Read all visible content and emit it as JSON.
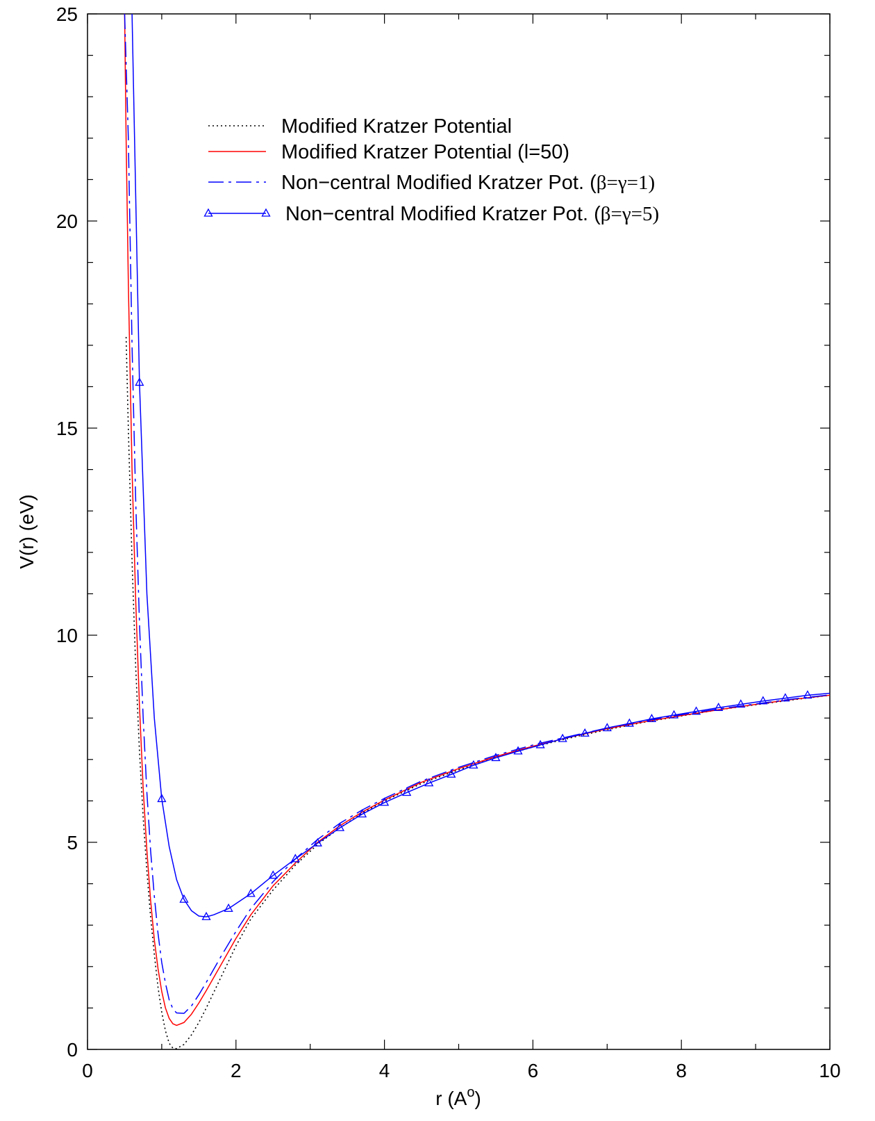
{
  "chart_data": {
    "type": "line",
    "xlabel": "r (A",
    "xlabel_superscript": "o",
    "xlabel_close": ")",
    "ylabel": "V(r) (eV)",
    "xlim": [
      0,
      10
    ],
    "ylim": [
      0,
      25
    ],
    "x_ticks": [
      0,
      2,
      4,
      6,
      8,
      10
    ],
    "y_ticks": [
      0,
      5,
      10,
      15,
      20,
      25
    ],
    "x_tick_labels": [
      "0",
      "2",
      "4",
      "6",
      "8",
      "10"
    ],
    "y_tick_labels": [
      "0",
      "5",
      "10",
      "15",
      "20",
      "25"
    ],
    "grid": false,
    "legend_position": "top-right",
    "series": [
      {
        "name": "Modified Kratzer Potential",
        "label_parts": [
          {
            "text": "Modified Kratzer Potential",
            "greek": false
          }
        ],
        "color": "#000000",
        "style": "dotted",
        "marker": "none",
        "points": [
          [
            0.52,
            17.2
          ],
          [
            0.55,
            15.0
          ],
          [
            0.6,
            11.8
          ],
          [
            0.65,
            9.2
          ],
          [
            0.7,
            7.2
          ],
          [
            0.75,
            5.6
          ],
          [
            0.8,
            4.3
          ],
          [
            0.85,
            3.2
          ],
          [
            0.9,
            2.3
          ],
          [
            0.95,
            1.5
          ],
          [
            1.0,
            0.9
          ],
          [
            1.05,
            0.45
          ],
          [
            1.1,
            0.15
          ],
          [
            1.15,
            0.03
          ],
          [
            1.2,
            0.02
          ],
          [
            1.3,
            0.12
          ],
          [
            1.4,
            0.35
          ],
          [
            1.5,
            0.65
          ],
          [
            1.6,
            1.0
          ],
          [
            1.8,
            1.75
          ],
          [
            2.0,
            2.5
          ],
          [
            2.2,
            3.15
          ],
          [
            2.5,
            3.85
          ],
          [
            2.8,
            4.45
          ],
          [
            3.1,
            4.95
          ],
          [
            3.4,
            5.35
          ],
          [
            3.7,
            5.7
          ],
          [
            4.0,
            6.0
          ],
          [
            4.5,
            6.42
          ],
          [
            5.0,
            6.75
          ],
          [
            5.5,
            7.05
          ],
          [
            6.0,
            7.3
          ],
          [
            6.5,
            7.52
          ],
          [
            7.0,
            7.72
          ],
          [
            7.5,
            7.9
          ],
          [
            8.0,
            8.05
          ],
          [
            8.5,
            8.2
          ],
          [
            9.0,
            8.32
          ],
          [
            9.5,
            8.44
          ],
          [
            10.0,
            8.55
          ]
        ]
      },
      {
        "name": "Modified Kratzer Potential (l=50)",
        "label_parts": [
          {
            "text": "Modified Kratzer Potential (l=50)",
            "greek": false
          }
        ],
        "color": "#ff0000",
        "style": "solid",
        "marker": "none",
        "points": [
          [
            0.5,
            25.0
          ],
          [
            0.52,
            22.0
          ],
          [
            0.55,
            18.5
          ],
          [
            0.6,
            14.0
          ],
          [
            0.65,
            10.8
          ],
          [
            0.7,
            8.3
          ],
          [
            0.75,
            6.3
          ],
          [
            0.8,
            4.8
          ],
          [
            0.85,
            3.6
          ],
          [
            0.9,
            2.65
          ],
          [
            0.95,
            1.95
          ],
          [
            1.0,
            1.4
          ],
          [
            1.05,
            1.0
          ],
          [
            1.1,
            0.75
          ],
          [
            1.15,
            0.62
          ],
          [
            1.2,
            0.58
          ],
          [
            1.3,
            0.65
          ],
          [
            1.4,
            0.85
          ],
          [
            1.5,
            1.12
          ],
          [
            1.6,
            1.42
          ],
          [
            1.8,
            2.05
          ],
          [
            2.0,
            2.68
          ],
          [
            2.2,
            3.25
          ],
          [
            2.5,
            3.95
          ],
          [
            2.8,
            4.5
          ],
          [
            3.1,
            5.0
          ],
          [
            3.4,
            5.4
          ],
          [
            3.7,
            5.73
          ],
          [
            4.0,
            6.02
          ],
          [
            4.5,
            6.45
          ],
          [
            5.0,
            6.78
          ],
          [
            5.5,
            7.07
          ],
          [
            6.0,
            7.32
          ],
          [
            6.5,
            7.54
          ],
          [
            7.0,
            7.74
          ],
          [
            7.5,
            7.91
          ],
          [
            8.0,
            8.06
          ],
          [
            8.5,
            8.2
          ],
          [
            9.0,
            8.33
          ],
          [
            9.5,
            8.45
          ],
          [
            10.0,
            8.55
          ]
        ]
      },
      {
        "name": "Non−central Modified Kratzer Pot. (β=γ=1)",
        "label_parts": [
          {
            "text": "Non−central Modified Kratzer Pot. (",
            "greek": false
          },
          {
            "text": "β=γ=1)",
            "greek": true
          }
        ],
        "color": "#0000ff",
        "style": "dashdot",
        "marker": "none",
        "points": [
          [
            0.5,
            25.0
          ],
          [
            0.55,
            22.0
          ],
          [
            0.6,
            17.0
          ],
          [
            0.65,
            13.2
          ],
          [
            0.7,
            10.3
          ],
          [
            0.75,
            8.0
          ],
          [
            0.8,
            6.2
          ],
          [
            0.85,
            4.8
          ],
          [
            0.9,
            3.7
          ],
          [
            0.95,
            2.8
          ],
          [
            1.0,
            2.1
          ],
          [
            1.05,
            1.6
          ],
          [
            1.1,
            1.2
          ],
          [
            1.15,
            0.98
          ],
          [
            1.2,
            0.88
          ],
          [
            1.3,
            0.87
          ],
          [
            1.4,
            1.05
          ],
          [
            1.5,
            1.32
          ],
          [
            1.6,
            1.62
          ],
          [
            1.8,
            2.25
          ],
          [
            2.0,
            2.85
          ],
          [
            2.2,
            3.4
          ],
          [
            2.5,
            4.05
          ],
          [
            2.8,
            4.6
          ],
          [
            3.1,
            5.07
          ],
          [
            3.4,
            5.46
          ],
          [
            3.7,
            5.78
          ],
          [
            4.0,
            6.06
          ],
          [
            4.5,
            6.48
          ],
          [
            5.0,
            6.81
          ],
          [
            5.5,
            7.1
          ],
          [
            6.0,
            7.35
          ],
          [
            6.5,
            7.56
          ],
          [
            7.0,
            7.76
          ],
          [
            7.5,
            7.93
          ],
          [
            8.0,
            8.08
          ],
          [
            8.5,
            8.22
          ],
          [
            9.0,
            8.34
          ],
          [
            9.5,
            8.46
          ],
          [
            10.0,
            8.56
          ]
        ]
      },
      {
        "name": " Non−central Modified Kratzer Pot. (β=γ=5)",
        "label_parts": [
          {
            "text": " Non−central Modified Kratzer Pot. (",
            "greek": false
          },
          {
            "text": "β=γ=5)",
            "greek": true
          }
        ],
        "color": "#0000ff",
        "style": "solid",
        "marker": "triangle",
        "points": [
          [
            0.6,
            25.0
          ],
          [
            0.7,
            16.1
          ],
          [
            0.8,
            11.0
          ],
          [
            0.9,
            8.0
          ],
          [
            1.0,
            6.05
          ],
          [
            1.1,
            4.9
          ],
          [
            1.2,
            4.1
          ],
          [
            1.3,
            3.62
          ],
          [
            1.4,
            3.35
          ],
          [
            1.5,
            3.22
          ],
          [
            1.6,
            3.2
          ],
          [
            1.7,
            3.25
          ],
          [
            1.9,
            3.4
          ],
          [
            2.2,
            3.76
          ],
          [
            2.5,
            4.2
          ],
          [
            2.8,
            4.6
          ],
          [
            3.1,
            4.98
          ],
          [
            3.4,
            5.35
          ],
          [
            3.7,
            5.68
          ],
          [
            4.0,
            5.96
          ],
          [
            4.3,
            6.2
          ],
          [
            4.6,
            6.43
          ],
          [
            4.9,
            6.64
          ],
          [
            5.2,
            6.86
          ],
          [
            5.5,
            7.04
          ],
          [
            5.8,
            7.2
          ],
          [
            6.1,
            7.35
          ],
          [
            6.4,
            7.5
          ],
          [
            6.7,
            7.63
          ],
          [
            7.0,
            7.76
          ],
          [
            7.3,
            7.87
          ],
          [
            7.6,
            7.98
          ],
          [
            7.9,
            8.07
          ],
          [
            8.2,
            8.16
          ],
          [
            8.5,
            8.25
          ],
          [
            8.8,
            8.33
          ],
          [
            9.1,
            8.41
          ],
          [
            9.4,
            8.48
          ],
          [
            9.7,
            8.55
          ],
          [
            10.0,
            8.6
          ]
        ],
        "marker_x": [
          0.7,
          1.0,
          1.3,
          1.6,
          1.9,
          2.2,
          2.5,
          2.8,
          3.1,
          3.4,
          3.7,
          4.0,
          4.3,
          4.6,
          4.9,
          5.2,
          5.5,
          5.8,
          6.1,
          6.4,
          6.7,
          7.0,
          7.3,
          7.6,
          7.9,
          8.2,
          8.5,
          8.8,
          9.1,
          9.4,
          9.7
        ]
      }
    ]
  }
}
